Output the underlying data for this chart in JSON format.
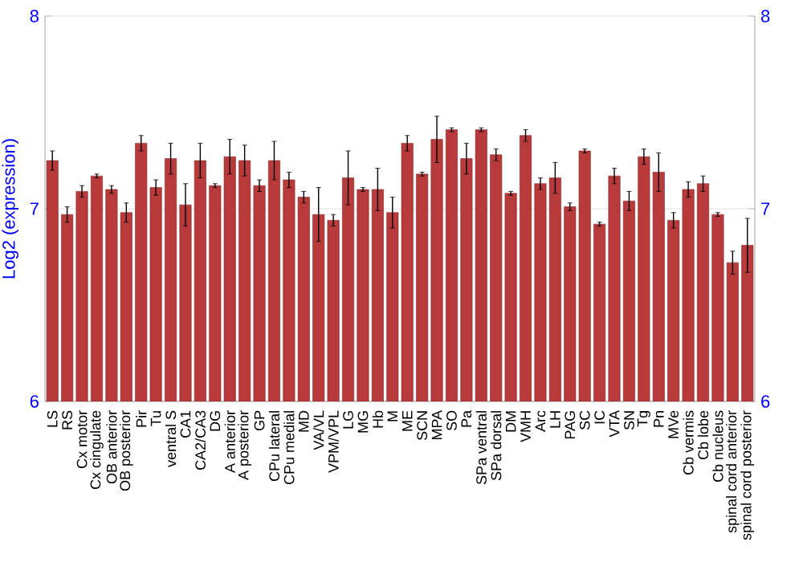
{
  "chart_data": {
    "type": "bar",
    "ylabel": "Log2 (expression)",
    "categories": [
      "LS",
      "RS",
      "Cx motor",
      "Cx cingulate",
      "OB anterior",
      "OB posterior",
      "Pir",
      "Tu",
      "ventral S",
      "CA1",
      "CA2/CA3",
      "DG",
      "A anterior",
      "A posterior",
      "GP",
      "CPu lateral",
      "CPu medial",
      "MD",
      "VA/VL",
      "VPM/VPL",
      "LG",
      "MG",
      "Hb",
      "M",
      "ME",
      "SCN",
      "MPA",
      "SO",
      "Pa",
      "SPa ventral",
      "SPa dorsal",
      "DM",
      "VMH",
      "Arc",
      "LH",
      "PAG",
      "SC",
      "IC",
      "VTA",
      "SN",
      "Tg",
      "Pn",
      "MVe",
      "Cb vermis",
      "Cb lobe",
      "Cb nucleus",
      "spinal cord anterior",
      "spinal cord posterior"
    ],
    "values": [
      7.25,
      6.97,
      7.09,
      7.17,
      7.1,
      6.98,
      7.34,
      7.11,
      7.26,
      7.02,
      7.25,
      7.12,
      7.27,
      7.25,
      7.12,
      7.25,
      7.15,
      7.06,
      6.97,
      6.94,
      7.16,
      7.1,
      7.1,
      6.98,
      7.34,
      7.18,
      7.36,
      7.41,
      7.26,
      7.41,
      7.28,
      7.08,
      7.38,
      7.13,
      7.16,
      7.01,
      7.3,
      6.92,
      7.17,
      7.04,
      7.27,
      7.19,
      6.94,
      7.1,
      7.13,
      6.97,
      6.72,
      6.81
    ],
    "errors": [
      0.05,
      0.04,
      0.03,
      0.01,
      0.02,
      0.05,
      0.04,
      0.04,
      0.08,
      0.11,
      0.09,
      0.01,
      0.09,
      0.08,
      0.03,
      0.1,
      0.04,
      0.03,
      0.14,
      0.03,
      0.14,
      0.01,
      0.11,
      0.08,
      0.04,
      0.01,
      0.12,
      0.01,
      0.08,
      0.01,
      0.03,
      0.01,
      0.03,
      0.03,
      0.08,
      0.02,
      0.01,
      0.01,
      0.04,
      0.05,
      0.04,
      0.1,
      0.04,
      0.04,
      0.04,
      0.01,
      0.06,
      0.14
    ],
    "color": "#b83a3a",
    "ylim": [
      6,
      8
    ],
    "yticks": [
      6,
      7,
      8
    ],
    "y2lim": [
      6,
      8
    ],
    "y2ticks": [
      6,
      7,
      8
    ],
    "grid": "y"
  }
}
